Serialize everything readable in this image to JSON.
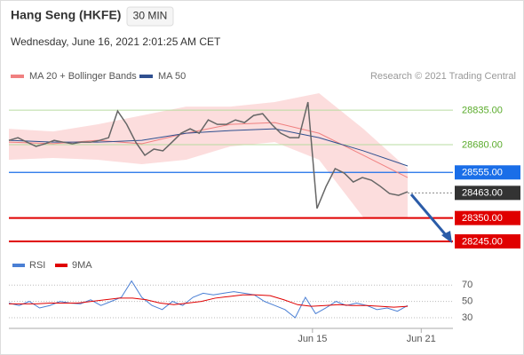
{
  "header": {
    "title": "Hang Seng (HKFE)",
    "timeframe": "30 MIN",
    "date": "Wednesday, June 16, 2021 2:01:25 AM CET",
    "source": "Research © 2021 Trading Central"
  },
  "chart_data": [
    {
      "type": "line",
      "xlim": [
        0,
        49
      ],
      "xticks": [
        {
          "value": 33.5,
          "label": "Jun 15"
        },
        {
          "value": 45.5,
          "label": "Jun 21"
        }
      ],
      "ylim": [
        28213,
        28963
      ],
      "price": {
        "color": "#666666",
        "values": [
          28699,
          28711,
          28691,
          28672,
          28684,
          28699,
          28691,
          28684,
          28691,
          28691,
          28699,
          28711,
          28831,
          28771,
          28691,
          28632,
          28660,
          28652,
          28691,
          28731,
          28751,
          28731,
          28791,
          28771,
          28771,
          28791,
          28779,
          28811,
          28819,
          28771,
          28731,
          28711,
          28711,
          28871,
          28393,
          28492,
          28572,
          28552,
          28512,
          28532,
          28520,
          28492,
          28460,
          28452,
          28468
        ]
      },
      "series": [
        {
          "name": "MA 20 + Bollinger Bands",
          "color": "#f08080",
          "values": [
            28691,
            28684,
            28699,
            28684,
            28731,
            28771,
            28779,
            28731,
            28632,
            28532
          ]
        },
        {
          "name": "MA 50",
          "color": "#2f4f8f",
          "values": [
            28699,
            28691,
            28691,
            28699,
            28731,
            28743,
            28751,
            28711,
            28652,
            28584
          ]
        }
      ],
      "bands": {
        "color": "#fbd5d5",
        "upper": [
          28751,
          28739,
          28771,
          28811,
          28851,
          28851,
          28871,
          28911,
          28751,
          28572
        ],
        "lower": [
          28612,
          28620,
          28612,
          28592,
          28612,
          28672,
          28691,
          28612,
          28353,
          28353
        ]
      },
      "levels": [
        {
          "value": 28835,
          "label": "28835.00",
          "color": "#5aab2b",
          "line_color": "#b9dca0",
          "style": "text",
          "line": "solid"
        },
        {
          "value": 28680,
          "label": "28680.00",
          "color": "#5aab2b",
          "line_color": "#b9dca0",
          "style": "text",
          "line": "solid"
        },
        {
          "value": 28555,
          "label": "28555.00",
          "color": "#1a6ee8",
          "line_color": "#1a6ee8",
          "style": "box",
          "line": "solid"
        },
        {
          "value": 28463,
          "label": "28463.00",
          "color": "#333333",
          "line_color": "#888888",
          "style": "box",
          "line": "dotted"
        },
        {
          "value": 28350,
          "label": "28350.00",
          "color": "#e00000",
          "line_color": "#e00000",
          "style": "box",
          "line": "solid"
        },
        {
          "value": 28245,
          "label": "28245.00",
          "color": "#e00000",
          "line_color": "#e00000",
          "style": "box",
          "line": "solid"
        }
      ]
    },
    {
      "type": "line",
      "ylim": [
        17,
        80
      ],
      "yticks": [
        70,
        50,
        30
      ],
      "grid": true,
      "series": [
        {
          "name": "RSI",
          "color": "#4a7fd4",
          "values": [
            48,
            45,
            50,
            42,
            45,
            50,
            48,
            47,
            52,
            45,
            50,
            55,
            75,
            55,
            45,
            40,
            50,
            45,
            55,
            60,
            58,
            60,
            62,
            60,
            58,
            50,
            45,
            40,
            30,
            55,
            35,
            42,
            50,
            45,
            48,
            45,
            40,
            42,
            38,
            45
          ]
        },
        {
          "name": "9MA",
          "color": "#e00000",
          "values": [
            47,
            47,
            47,
            48,
            48,
            48,
            50,
            52,
            54,
            54,
            52,
            48,
            46,
            48,
            50,
            54,
            56,
            58,
            58,
            57,
            52,
            46,
            44,
            45,
            46,
            45,
            45,
            44,
            43,
            44
          ]
        }
      ]
    }
  ]
}
